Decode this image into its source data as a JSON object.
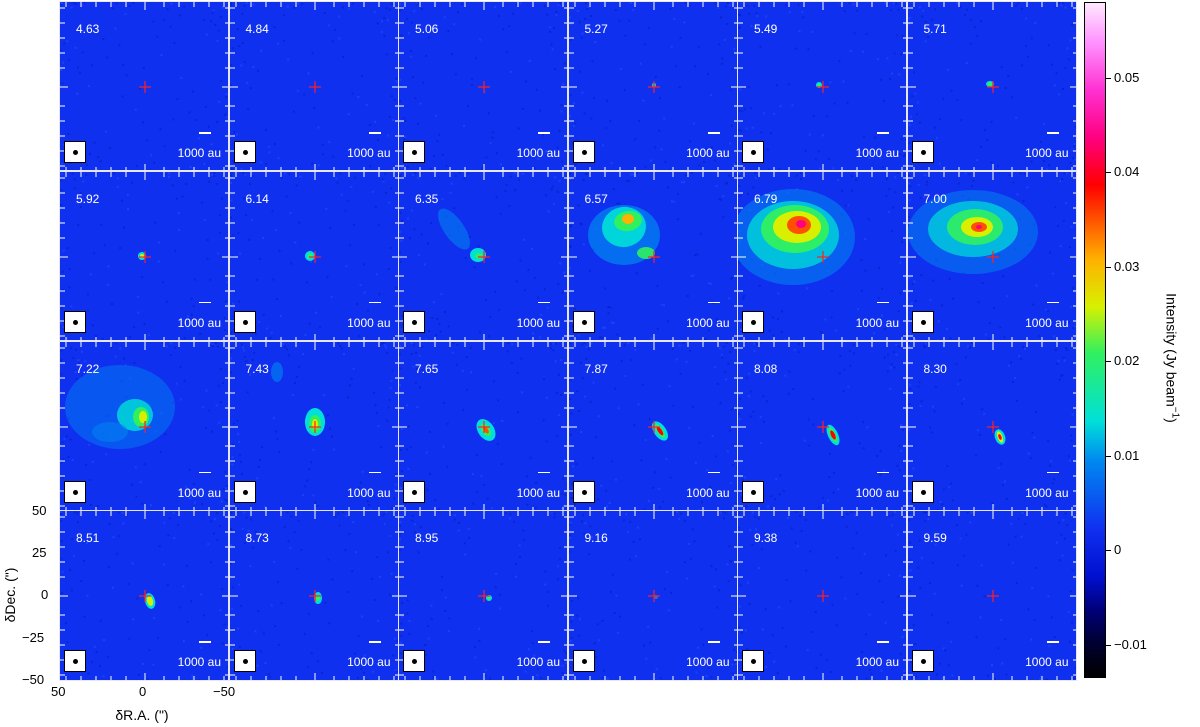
{
  "velocities": [
    "4.63",
    "4.84",
    "5.06",
    "5.27",
    "5.49",
    "5.71",
    "5.92",
    "6.14",
    "6.35",
    "6.57",
    "6.79",
    "7.00",
    "7.22",
    "7.43",
    "7.65",
    "7.87",
    "8.08",
    "8.30",
    "8.51",
    "8.73",
    "8.95",
    "9.16",
    "9.38",
    "9.59"
  ],
  "scale_label": "1000 au",
  "axes": {
    "xlabel": "δR.A. (\")",
    "ylabel": "δDec. (\")",
    "xticks": [
      "50",
      "0",
      "−50"
    ],
    "yticks": [
      "50",
      "25",
      "0",
      "−25",
      "−50"
    ]
  },
  "colorbar": {
    "label": "Intensity (Jy beam",
    "label_sup": "−1",
    "label_close": ")",
    "ticks": [
      "0.05",
      "0.04",
      "0.03",
      "0.02",
      "0.01",
      "0",
      "−0.01"
    ],
    "range": [
      -0.0135,
      0.058
    ],
    "colormap": [
      "#000000",
      "#00007a",
      "#1030f0",
      "#00e0d8",
      "#30f060",
      "#d8f000",
      "#ff5000",
      "#ff0000",
      "#ff30d0",
      "#ffe8ff"
    ]
  },
  "colors": {
    "background": "#1030f0",
    "marker": "#ff2020"
  }
}
